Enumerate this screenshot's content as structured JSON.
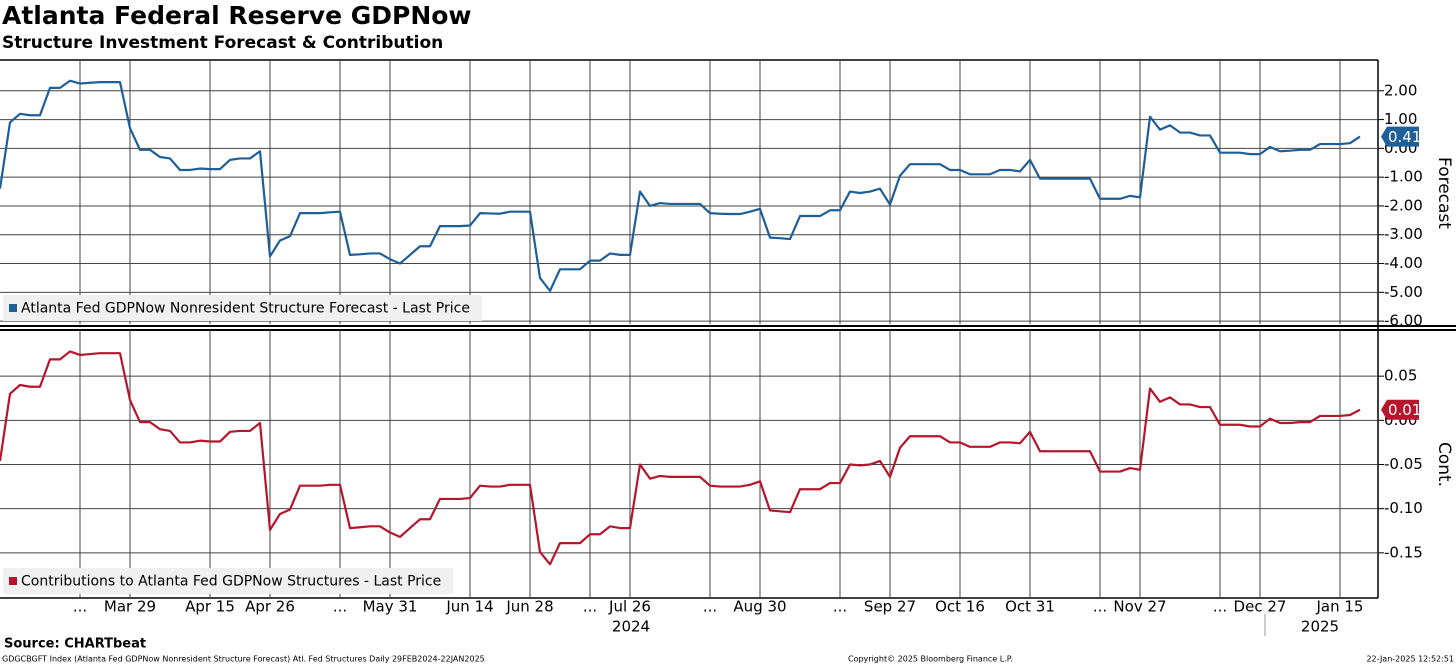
{
  "title": "Atlanta Federal Reserve GDPNow",
  "subtitle": "Structure Investment Forecast & Contribution",
  "chart_data": [
    {
      "type": "line",
      "y_label": "Forecast",
      "last_value_label": "0.41",
      "series": [
        {
          "name": "Atlanta Fed GDPNow Nonresident Structure Forecast - Last Price",
          "color": "#1f5f99",
          "values": [
            -1.4,
            0.9,
            1.2,
            1.15,
            1.15,
            2.1,
            2.1,
            2.35,
            2.25,
            2.28,
            2.3,
            2.3,
            2.3,
            0.7,
            -0.05,
            -0.05,
            -0.3,
            -0.35,
            -0.75,
            -0.75,
            -0.7,
            -0.72,
            -0.72,
            -0.4,
            -0.35,
            -0.35,
            -0.1,
            -3.75,
            -3.2,
            -3.05,
            -2.25,
            -2.25,
            -2.25,
            -2.22,
            -2.2,
            -3.7,
            -3.68,
            -3.65,
            -3.65,
            -3.85,
            -4.0,
            -3.7,
            -3.4,
            -3.4,
            -2.7,
            -2.7,
            -2.7,
            -2.68,
            -2.25,
            -2.26,
            -2.27,
            -2.2,
            -2.2,
            -2.2,
            -4.5,
            -4.95,
            -4.2,
            -4.2,
            -4.2,
            -3.9,
            -3.9,
            -3.65,
            -3.7,
            -3.7,
            -1.5,
            -2.0,
            -1.9,
            -1.93,
            -1.93,
            -1.93,
            -1.93,
            -2.25,
            -2.27,
            -2.28,
            -2.28,
            -2.2,
            -2.1,
            -3.1,
            -3.12,
            -3.15,
            -2.35,
            -2.35,
            -2.35,
            -2.15,
            -2.15,
            -1.5,
            -1.55,
            -1.5,
            -1.4,
            -1.95,
            -0.95,
            -0.55,
            -0.55,
            -0.55,
            -0.55,
            -0.75,
            -0.75,
            -0.9,
            -0.9,
            -0.9,
            -0.75,
            -0.75,
            -0.8,
            -0.4,
            -1.05,
            -1.05,
            -1.05,
            -1.05,
            -1.05,
            -1.05,
            -1.75,
            -1.75,
            -1.75,
            -1.65,
            -1.7,
            1.1,
            0.65,
            0.8,
            0.55,
            0.55,
            0.45,
            0.45,
            -0.15,
            -0.15,
            -0.15,
            -0.2,
            -0.2,
            0.05,
            -0.1,
            -0.08,
            -0.05,
            -0.05,
            0.15,
            0.15,
            0.15,
            0.18,
            0.41
          ]
        }
      ],
      "ylim": [
        -6.1,
        3.0
      ],
      "yticks": [
        {
          "value": 2,
          "label": "2.00"
        },
        {
          "value": 1,
          "label": "1.00"
        },
        {
          "value": 0,
          "label": "0.00"
        },
        {
          "value": -1,
          "label": "-1.00"
        },
        {
          "value": -2,
          "label": "-2.00"
        },
        {
          "value": -3,
          "label": "-3.00"
        },
        {
          "value": -4,
          "label": "-4.00"
        },
        {
          "value": -5,
          "label": "-5.00"
        },
        {
          "value": -6,
          "label": "-6.00"
        }
      ],
      "grid": true
    },
    {
      "type": "line",
      "y_label": "Cont.",
      "last_value_label": "0.01",
      "categories": [
        null,
        null,
        null,
        null,
        null,
        null,
        null,
        null,
        "...",
        null,
        null,
        null,
        null,
        "Mar 29",
        null,
        null,
        null,
        null,
        null,
        null,
        null,
        "Apr 15",
        null,
        null,
        null,
        null,
        null,
        "Apr 26",
        null,
        null,
        null,
        null,
        null,
        null,
        "...",
        null,
        null,
        null,
        null,
        "May 31",
        null,
        null,
        null,
        null,
        null,
        null,
        null,
        "Jun 14",
        null,
        null,
        null,
        null,
        null,
        "Jun 28",
        null,
        null,
        null,
        null,
        null,
        "...",
        null,
        null,
        null,
        "Jul 26",
        null,
        null,
        null,
        null,
        null,
        null,
        null,
        "...",
        null,
        null,
        null,
        null,
        "Aug 30",
        null,
        null,
        null,
        null,
        null,
        null,
        null,
        "...",
        null,
        null,
        null,
        null,
        "Sep 27",
        null,
        null,
        null,
        null,
        null,
        null,
        "Oct 16",
        null,
        null,
        null,
        null,
        null,
        null,
        "Oct 31",
        null,
        null,
        null,
        null,
        null,
        null,
        "...",
        null,
        null,
        null,
        "Nov 27",
        null,
        null,
        null,
        null,
        null,
        null,
        null,
        "...",
        null,
        null,
        null,
        "Dec 27",
        null,
        null,
        null,
        null,
        null,
        null,
        null,
        "Jan 15",
        null,
        null
      ],
      "year_labels": [
        "2024",
        "2025"
      ],
      "series": [
        {
          "name": "Contributions to Atlanta Fed GDPNow Structures - Last Price",
          "color": "#b5162b",
          "values": [
            -0.046,
            0.03,
            0.04,
            0.038,
            0.038,
            0.069,
            0.069,
            0.078,
            0.074,
            0.075,
            0.076,
            0.076,
            0.076,
            0.023,
            -0.002,
            -0.002,
            -0.01,
            -0.012,
            -0.025,
            -0.025,
            -0.023,
            -0.024,
            -0.024,
            -0.013,
            -0.012,
            -0.012,
            -0.003,
            -0.124,
            -0.106,
            -0.101,
            -0.074,
            -0.074,
            -0.074,
            -0.073,
            -0.073,
            -0.122,
            -0.121,
            -0.12,
            -0.12,
            -0.127,
            -0.132,
            -0.122,
            -0.112,
            -0.112,
            -0.089,
            -0.089,
            -0.089,
            -0.088,
            -0.074,
            -0.075,
            -0.075,
            -0.073,
            -0.073,
            -0.073,
            -0.149,
            -0.163,
            -0.139,
            -0.139,
            -0.139,
            -0.129,
            -0.129,
            -0.12,
            -0.122,
            -0.122,
            -0.05,
            -0.066,
            -0.063,
            -0.064,
            -0.064,
            -0.064,
            -0.064,
            -0.074,
            -0.075,
            -0.075,
            -0.075,
            -0.073,
            -0.069,
            -0.102,
            -0.103,
            -0.104,
            -0.078,
            -0.078,
            -0.078,
            -0.071,
            -0.071,
            -0.05,
            -0.051,
            -0.05,
            -0.046,
            -0.064,
            -0.031,
            -0.018,
            -0.018,
            -0.018,
            -0.018,
            -0.025,
            -0.025,
            -0.03,
            -0.03,
            -0.03,
            -0.025,
            -0.025,
            -0.026,
            -0.013,
            -0.035,
            -0.035,
            -0.035,
            -0.035,
            -0.035,
            -0.035,
            -0.058,
            -0.058,
            -0.058,
            -0.054,
            -0.056,
            0.036,
            0.021,
            0.026,
            0.018,
            0.018,
            0.015,
            0.015,
            -0.005,
            -0.005,
            -0.005,
            -0.007,
            -0.007,
            0.002,
            -0.003,
            -0.003,
            -0.002,
            -0.002,
            0.005,
            0.005,
            0.005,
            0.006,
            0.012
          ]
        }
      ],
      "ylim": [
        -0.2,
        0.1
      ],
      "yticks": [
        0.05,
        {
          "value": 0,
          "label": "0.00"
        },
        -0.05,
        {
          "value": -0.1,
          "label": "-0.10"
        },
        {
          "value": -0.15,
          "label": "-0.15"
        }
      ],
      "grid": true
    }
  ],
  "footer": {
    "source": "Source: CHARTbeat",
    "ticker": "GDGCBGFT Index (Atlanta Fed GDPNow Nonresident Structure Forecast) Atl. Fed Structures  Daily 29FEB2024-22JAN2025",
    "copyright": "Copyright© 2025 Bloomberg Finance L.P.",
    "timestamp": "22-Jan-2025 12:52:51"
  }
}
